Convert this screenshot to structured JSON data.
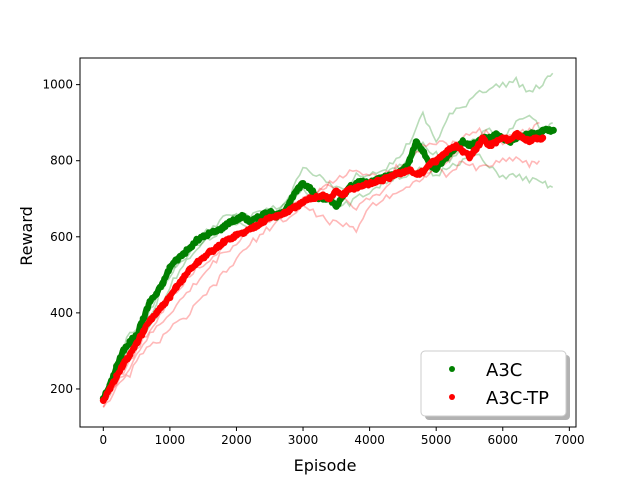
{
  "chart_data": {
    "type": "line",
    "title": "",
    "xlabel": "Episode",
    "ylabel": "Reward",
    "xlim": [
      -350,
      7100
    ],
    "ylim": [
      100,
      1070
    ],
    "xticks": [
      0,
      1000,
      2000,
      3000,
      4000,
      5000,
      6000,
      7000
    ],
    "yticks": [
      200,
      400,
      600,
      800,
      1000
    ],
    "grid": false,
    "legend": {
      "placement": "lower-right",
      "entries": [
        "A3C",
        "A3C-TP"
      ]
    },
    "series": [
      {
        "name": "A3C",
        "color": "#008000",
        "role": "mean",
        "x": [
          0,
          100,
          200,
          300,
          400,
          500,
          600,
          700,
          800,
          900,
          1000,
          1100,
          1200,
          1300,
          1400,
          1500,
          1600,
          1700,
          1800,
          1900,
          2000,
          2100,
          2200,
          2300,
          2400,
          2500,
          2600,
          2700,
          2800,
          2900,
          3000,
          3100,
          3200,
          3300,
          3400,
          3500,
          3600,
          3700,
          3800,
          3900,
          4000,
          4100,
          4200,
          4300,
          4400,
          4500,
          4600,
          4700,
          4800,
          4900,
          5000,
          5100,
          5200,
          5300,
          5400,
          5500,
          5600,
          5700,
          5800,
          5900,
          6000,
          6100,
          6200,
          6300,
          6400,
          6500,
          6600,
          6700,
          6760
        ],
        "y": [
          175,
          210,
          260,
          300,
          325,
          340,
          385,
          430,
          450,
          480,
          520,
          540,
          555,
          570,
          590,
          600,
          610,
          615,
          625,
          640,
          645,
          655,
          640,
          648,
          660,
          665,
          655,
          665,
          690,
          720,
          740,
          730,
          705,
          700,
          700,
          680,
          710,
          730,
          740,
          745,
          740,
          750,
          755,
          760,
          765,
          775,
          800,
          850,
          825,
          790,
          780,
          800,
          820,
          835,
          850,
          840,
          845,
          860,
          860,
          870,
          860,
          850,
          860,
          865,
          870,
          870,
          880,
          880,
          880
        ]
      },
      {
        "name": "A3C-TP",
        "color": "#ff0000",
        "role": "mean",
        "x": [
          0,
          100,
          200,
          300,
          400,
          500,
          600,
          700,
          800,
          900,
          1000,
          1100,
          1200,
          1300,
          1400,
          1500,
          1600,
          1700,
          1800,
          1900,
          2000,
          2100,
          2200,
          2300,
          2400,
          2500,
          2600,
          2700,
          2800,
          2900,
          3000,
          3100,
          3200,
          3300,
          3400,
          3500,
          3600,
          3700,
          3800,
          3900,
          4000,
          4100,
          4200,
          4300,
          4400,
          4500,
          4600,
          4700,
          4800,
          4900,
          5000,
          5100,
          5200,
          5300,
          5400,
          5500,
          5600,
          5700,
          5800,
          5900,
          6000,
          6100,
          6200,
          6300,
          6400,
          6500,
          6600
        ],
        "y": [
          170,
          200,
          235,
          265,
          290,
          320,
          350,
          380,
          400,
          420,
          440,
          470,
          490,
          515,
          530,
          545,
          560,
          570,
          585,
          595,
          605,
          610,
          620,
          630,
          640,
          650,
          655,
          660,
          670,
          680,
          690,
          700,
          705,
          710,
          700,
          720,
          710,
          725,
          730,
          735,
          740,
          745,
          750,
          755,
          765,
          770,
          775,
          765,
          770,
          790,
          800,
          815,
          830,
          840,
          825,
          810,
          830,
          860,
          840,
          850,
          860,
          855,
          870,
          860,
          850,
          860,
          860
        ]
      },
      {
        "name": "",
        "color": "#008000",
        "role": "run",
        "x": [
          0,
          200,
          400,
          600,
          800,
          1000,
          1200,
          1400,
          1600,
          1800,
          2000,
          2200,
          2400,
          2600,
          2800,
          3000,
          3200,
          3400,
          3600,
          3800,
          4000,
          4200,
          4400,
          4600,
          4800,
          5000,
          5200,
          5400,
          5600,
          5800,
          6000,
          6200,
          6400,
          6600,
          6750
        ],
        "y": [
          165,
          260,
          350,
          370,
          440,
          500,
          550,
          590,
          620,
          650,
          655,
          650,
          670,
          675,
          700,
          790,
          760,
          740,
          720,
          740,
          770,
          780,
          800,
          850,
          920,
          850,
          920,
          940,
          980,
          990,
          1000,
          1010,
          980,
          1000,
          1030
        ]
      },
      {
        "name": "",
        "color": "#008000",
        "role": "run",
        "x": [
          0,
          200,
          400,
          600,
          800,
          1000,
          1200,
          1400,
          1600,
          1800,
          2000,
          2200,
          2400,
          2600,
          2800,
          3000,
          3200,
          3400,
          3600,
          3800,
          4000,
          4200,
          4400,
          4600,
          4800,
          5000,
          5200,
          5400,
          5600,
          5800,
          6000,
          6200,
          6400,
          6600,
          6750
        ],
        "y": [
          160,
          230,
          320,
          340,
          390,
          470,
          530,
          560,
          600,
          630,
          640,
          620,
          640,
          660,
          680,
          720,
          700,
          710,
          680,
          700,
          720,
          740,
          760,
          760,
          780,
          760,
          790,
          800,
          820,
          780,
          760,
          760,
          750,
          740,
          730
        ]
      },
      {
        "name": "",
        "color": "#008000",
        "role": "run",
        "x": [
          0,
          200,
          400,
          600,
          800,
          1000,
          1200,
          1400,
          1600,
          1800,
          2000,
          2200,
          2400,
          2600,
          2800,
          3000,
          3200,
          3400,
          3600,
          3800,
          4000,
          4200,
          4400,
          4600,
          4800,
          5000,
          5200,
          5400,
          5600,
          5800,
          6000,
          6200,
          6400,
          6600,
          6750
        ],
        "y": [
          180,
          240,
          300,
          360,
          430,
          510,
          540,
          580,
          600,
          620,
          660,
          650,
          660,
          660,
          700,
          740,
          720,
          700,
          720,
          760,
          740,
          760,
          780,
          800,
          840,
          820,
          800,
          840,
          860,
          880,
          860,
          900,
          920,
          880,
          900
        ]
      },
      {
        "name": "",
        "color": "#ff0000",
        "role": "run",
        "x": [
          0,
          200,
          400,
          600,
          800,
          1000,
          1200,
          1400,
          1600,
          1800,
          2000,
          2200,
          2400,
          2600,
          2800,
          3000,
          3200,
          3400,
          3600,
          3800,
          4000,
          4200,
          4400,
          4600,
          4800,
          5000,
          5200,
          5400,
          5600,
          5800,
          6000,
          6200,
          6400,
          6550
        ],
        "y": [
          160,
          210,
          260,
          320,
          360,
          400,
          440,
          480,
          520,
          560,
          580,
          620,
          640,
          660,
          680,
          700,
          720,
          740,
          700,
          680,
          700,
          720,
          760,
          780,
          760,
          780,
          800,
          850,
          840,
          860,
          850,
          870,
          880,
          900
        ]
      },
      {
        "name": "",
        "color": "#ff0000",
        "role": "run",
        "x": [
          0,
          200,
          400,
          600,
          800,
          1000,
          1200,
          1400,
          1600,
          1800,
          2000,
          2200,
          2400,
          2600,
          2800,
          3000,
          3200,
          3400,
          3600,
          3800,
          4000,
          4200,
          4400,
          4600,
          4800,
          5000,
          5200,
          5400,
          5600,
          5800,
          6000,
          6200,
          6400,
          6550
        ],
        "y": [
          155,
          200,
          240,
          300,
          320,
          360,
          380,
          420,
          460,
          500,
          540,
          580,
          610,
          640,
          650,
          680,
          660,
          640,
          630,
          620,
          680,
          700,
          720,
          730,
          760,
          780,
          760,
          800,
          780,
          790,
          800,
          810,
          790,
          800
        ]
      },
      {
        "name": "",
        "color": "#ff0000",
        "role": "run",
        "x": [
          0,
          200,
          400,
          600,
          800,
          1000,
          1200,
          1400,
          1600,
          1800,
          2000,
          2200,
          2400,
          2600,
          2800,
          3000,
          3200,
          3400,
          3600,
          3800,
          4000,
          4200,
          4400,
          4600,
          4800,
          5000,
          5200,
          5400,
          5600,
          5800,
          6000,
          6200,
          6400,
          6550
        ],
        "y": [
          175,
          220,
          270,
          330,
          380,
          440,
          480,
          520,
          540,
          580,
          600,
          620,
          640,
          650,
          680,
          700,
          720,
          740,
          760,
          780,
          760,
          760,
          780,
          800,
          840,
          850,
          840,
          860,
          880,
          870,
          860,
          870,
          850,
          850
        ]
      }
    ]
  }
}
